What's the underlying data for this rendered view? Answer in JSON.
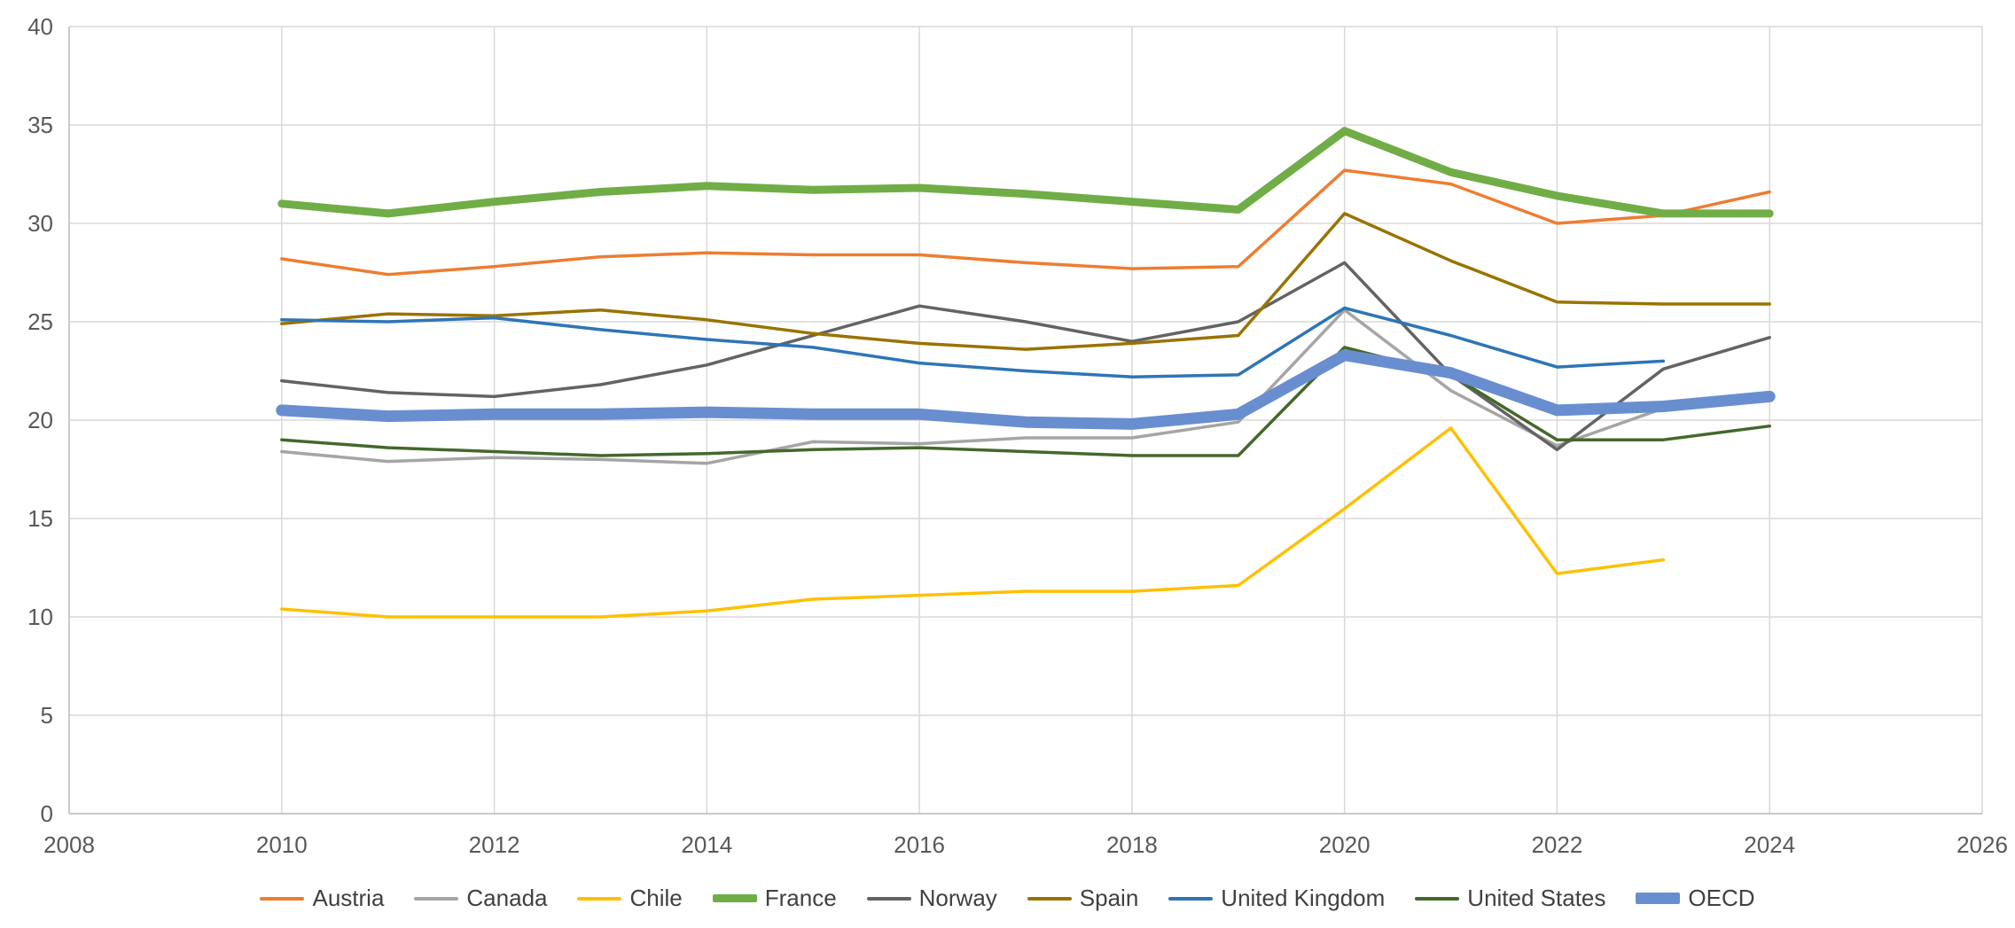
{
  "chart_style": {
    "background": "#FFFFFF",
    "grid_color": "#D9D9D9",
    "axis_color": "#BFBFBF",
    "tick_label_color": "#595959",
    "legend_text_color": "#404040"
  },
  "chart_data": {
    "type": "line",
    "title": "",
    "xlabel": "",
    "ylabel": "",
    "x": [
      2010,
      2011,
      2012,
      2013,
      2014,
      2015,
      2016,
      2017,
      2018,
      2019,
      2020,
      2021,
      2022,
      2023,
      2024
    ],
    "xlim": [
      2008,
      2026
    ],
    "ylim": [
      0,
      40
    ],
    "xticks": [
      2008,
      2010,
      2012,
      2014,
      2016,
      2018,
      2020,
      2022,
      2024,
      2026
    ],
    "yticks": [
      0,
      5,
      10,
      15,
      20,
      25,
      30,
      35,
      40
    ],
    "grid": true,
    "legend_position": "bottom",
    "series": [
      {
        "name": "Austria",
        "color": "#ED7D31",
        "width": 3.5,
        "values": [
          28.2,
          27.4,
          27.8,
          28.3,
          28.5,
          28.4,
          28.4,
          28.0,
          27.7,
          27.8,
          32.7,
          32.0,
          30.0,
          30.4,
          31.6
        ]
      },
      {
        "name": "Canada",
        "color": "#A5A5A5",
        "width": 3.5,
        "values": [
          18.4,
          17.9,
          18.1,
          18.0,
          17.8,
          18.9,
          18.8,
          19.1,
          19.1,
          19.9,
          25.6,
          21.5,
          18.7,
          20.6,
          null
        ]
      },
      {
        "name": "Chile",
        "color": "#FFC000",
        "width": 3.5,
        "values": [
          10.4,
          10.0,
          10.0,
          10.0,
          10.3,
          10.9,
          11.1,
          11.3,
          11.3,
          11.6,
          15.5,
          19.6,
          12.2,
          12.9,
          null
        ]
      },
      {
        "name": "France",
        "color": "#70AD47",
        "width": 9,
        "values": [
          31.0,
          30.5,
          31.1,
          31.6,
          31.9,
          31.7,
          31.8,
          31.5,
          31.1,
          30.7,
          34.7,
          32.6,
          31.4,
          30.5,
          30.5
        ]
      },
      {
        "name": "Norway",
        "color": "#636363",
        "width": 3.5,
        "values": [
          22.0,
          21.4,
          21.2,
          21.8,
          22.8,
          24.3,
          25.8,
          25.0,
          24.0,
          25.0,
          28.0,
          22.3,
          18.5,
          22.6,
          24.2
        ]
      },
      {
        "name": "Spain",
        "color": "#997300",
        "width": 3.5,
        "values": [
          24.9,
          25.4,
          25.3,
          25.6,
          25.1,
          24.4,
          23.9,
          23.6,
          23.9,
          24.3,
          30.5,
          28.1,
          26.0,
          25.9,
          25.9
        ]
      },
      {
        "name": "United Kingdom",
        "color": "#2E75B6",
        "width": 3.5,
        "values": [
          25.1,
          25.0,
          25.2,
          24.6,
          24.1,
          23.7,
          22.9,
          22.5,
          22.2,
          22.3,
          25.7,
          24.3,
          22.7,
          23.0,
          null
        ]
      },
      {
        "name": "United States",
        "color": "#43682B",
        "width": 3.5,
        "values": [
          19.0,
          18.6,
          18.4,
          18.2,
          18.3,
          18.5,
          18.6,
          18.4,
          18.2,
          18.2,
          23.7,
          22.3,
          19.0,
          19.0,
          19.7
        ]
      },
      {
        "name": "OECD",
        "color": "#698ED0",
        "width": 13,
        "values": [
          20.5,
          20.2,
          20.3,
          20.3,
          20.4,
          20.3,
          20.3,
          19.9,
          19.8,
          20.3,
          23.3,
          22.4,
          20.5,
          20.7,
          21.2
        ]
      }
    ]
  }
}
